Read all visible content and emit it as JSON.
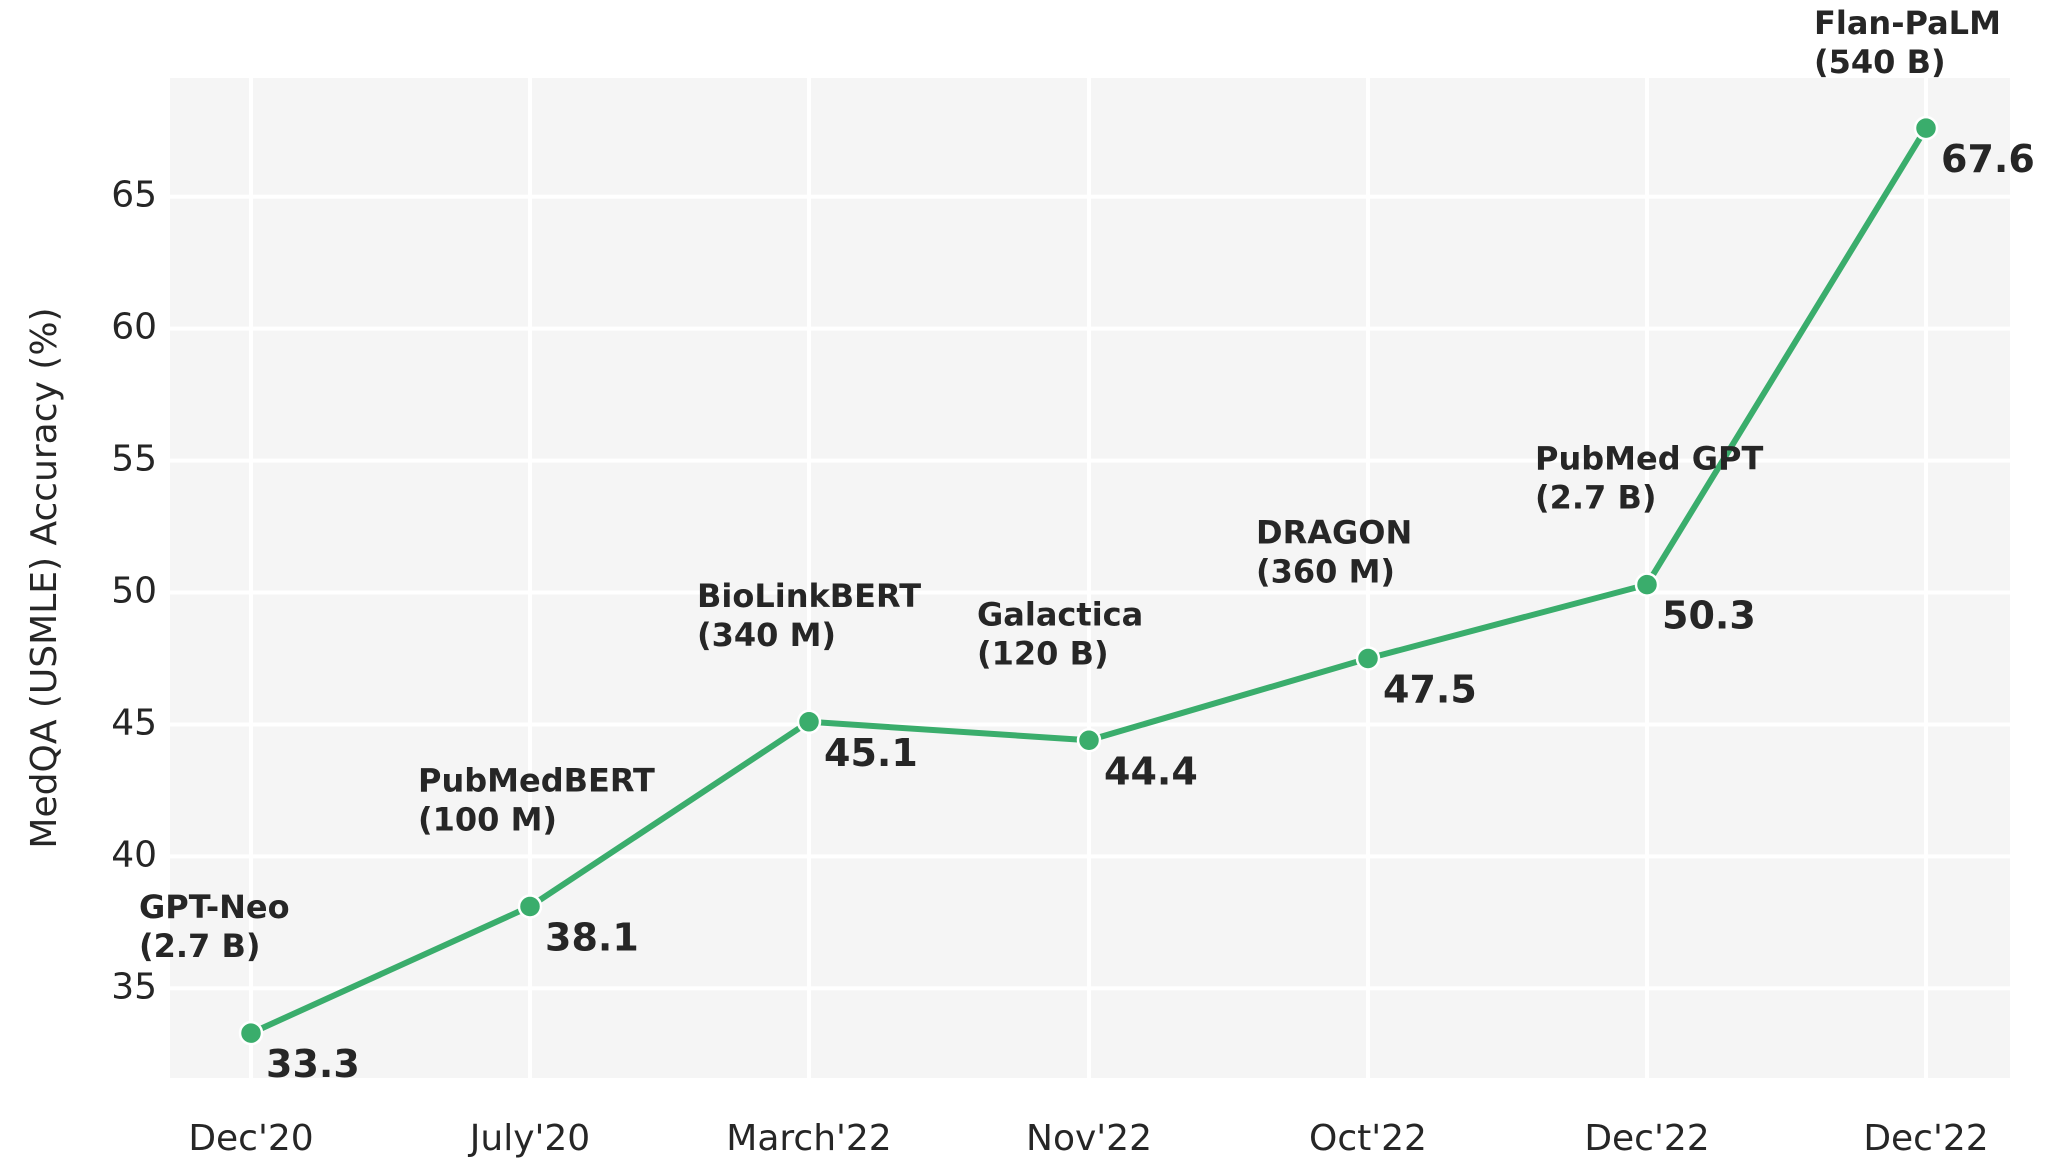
{
  "chart_data": {
    "type": "line",
    "title": "",
    "xlabel": "",
    "ylabel": "MedQA (USMLE) Accuracy (%)",
    "categories": [
      "Dec'20",
      "July'20",
      "March'22",
      "Nov'22",
      "Oct'22",
      "Dec'22",
      "Dec'22"
    ],
    "y_ticks": [
      35,
      40,
      45,
      50,
      55,
      60,
      65
    ],
    "ylim": [
      31.6,
      69.5
    ],
    "grid": true,
    "series": [
      {
        "values": [
          33.3,
          38.1,
          45.1,
          44.4,
          47.5,
          50.3,
          67.6
        ],
        "color": "#3aad6c"
      }
    ],
    "value_labels": [
      "33.3",
      "38.1",
      "45.1",
      "44.4",
      "47.5",
      "50.3",
      "67.6"
    ],
    "point_annotations": [
      {
        "name": "GPT-Neo",
        "size": "(2.7 B)"
      },
      {
        "name": "PubMedBERT",
        "size": "(100 M)"
      },
      {
        "name": "BioLinkBERT",
        "size": "(340 M)"
      },
      {
        "name": "Galactica",
        "size": "(120 B)"
      },
      {
        "name": "DRAGON",
        "size": "(360 M)"
      },
      {
        "name": "PubMed GPT",
        "size": "(2.7 B)"
      },
      {
        "name": "Flan-PaLM",
        "size": "(540 B)"
      }
    ],
    "colors": {
      "plot_background": "#f5f5f5",
      "grid": "#ffffff",
      "text": "#262626"
    }
  }
}
